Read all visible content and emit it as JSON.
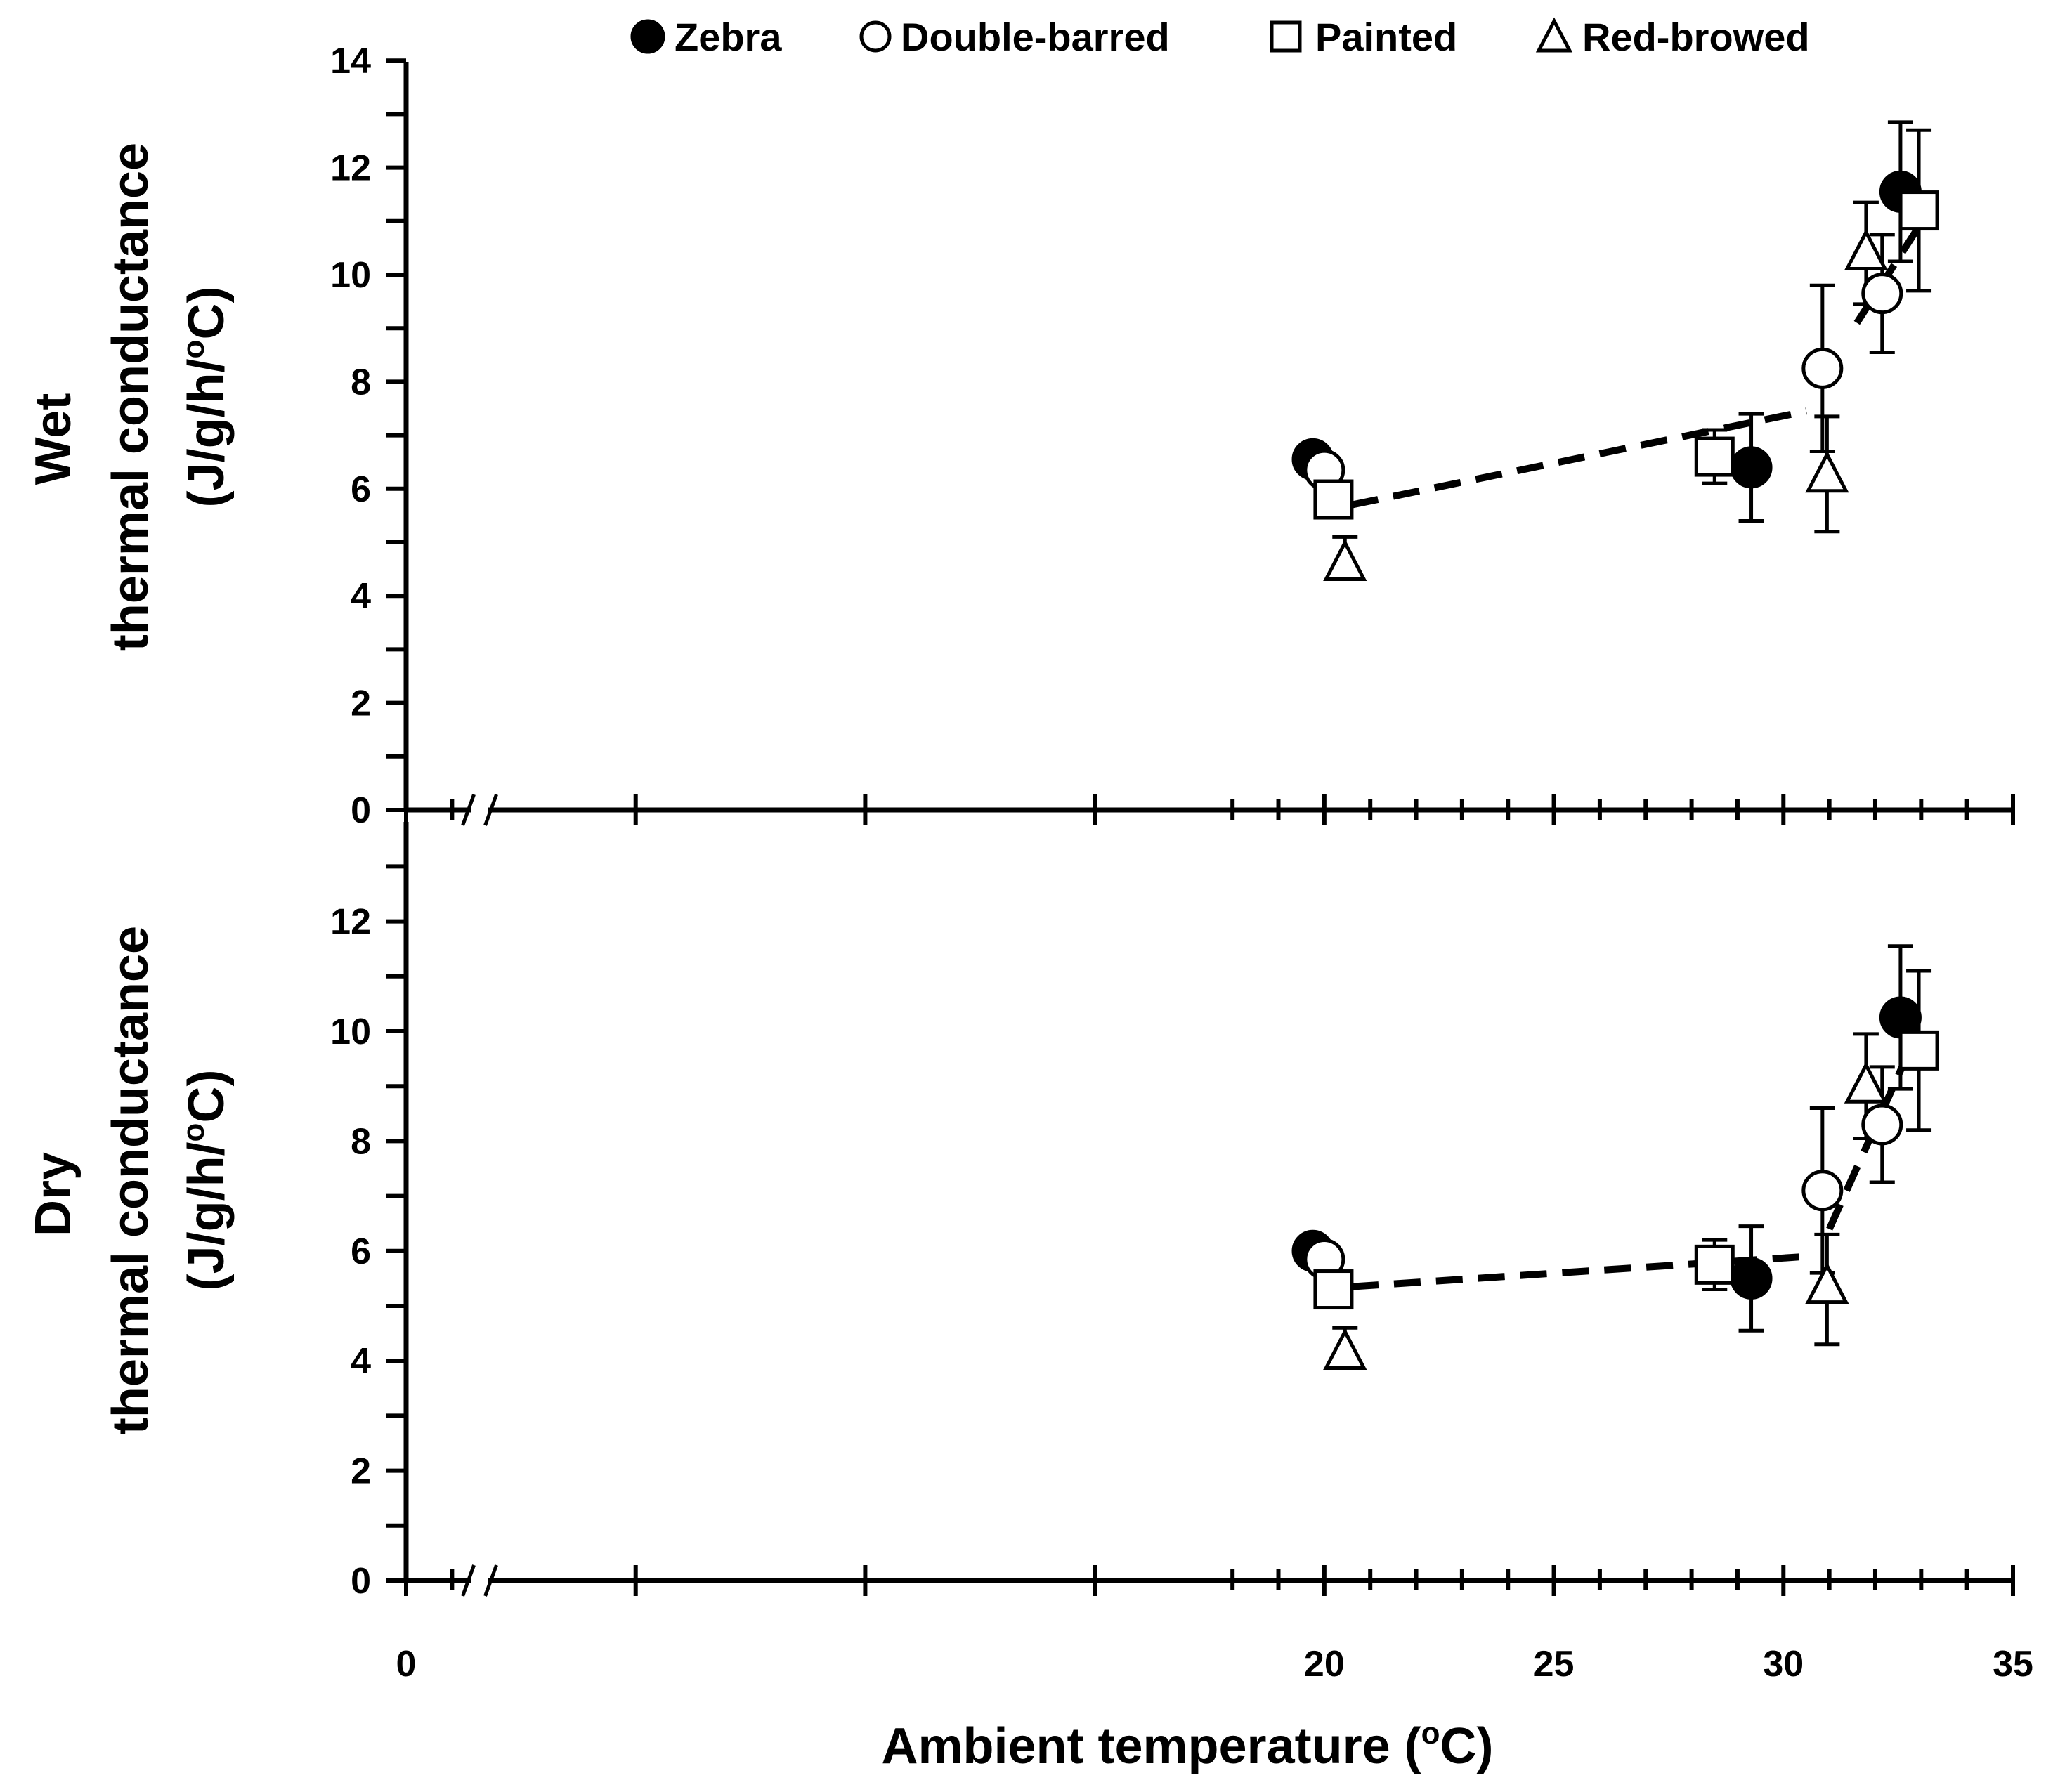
{
  "chart_data": [
    {
      "panel": "top",
      "type": "scatter",
      "ylabel_line1": "Wet",
      "ylabel_line2": "thermal conductance",
      "ylabel_line3": "(J/g/h/",
      "ylabel_sup": "o",
      "ylabel_unit": "C)",
      "ylim": [
        0,
        14
      ],
      "yticks": [
        "0",
        "2",
        "4",
        "6",
        "8",
        "10",
        "12",
        "14"
      ],
      "series": [
        {
          "name": "Zebra",
          "marker": "filled-circle",
          "points": [
            {
              "x": 19.75,
              "y": 6.55
            },
            {
              "x": 29.3,
              "y": 6.4,
              "err_up": 1.0,
              "err_down": 1.0
            },
            {
              "x": 32.55,
              "y": 11.55,
              "err_up": 1.3,
              "err_down": 1.3
            }
          ]
        },
        {
          "name": "Double-barred",
          "marker": "open-circle",
          "points": [
            {
              "x": 20.0,
              "y": 6.35
            },
            {
              "x": 30.85,
              "y": 8.25,
              "err_up": 1.55,
              "err_down": 1.55
            },
            {
              "x": 32.15,
              "y": 9.65,
              "err_up": 1.1,
              "err_down": 1.1
            }
          ]
        },
        {
          "name": "Painted",
          "marker": "open-square",
          "points": [
            {
              "x": 20.2,
              "y": 5.8
            },
            {
              "x": 28.5,
              "y": 6.6,
              "err_up": 0.5,
              "err_down": 0.5
            },
            {
              "x": 32.95,
              "y": 11.2,
              "err_up": 1.5,
              "err_down": 1.5
            }
          ]
        },
        {
          "name": "Red-browed",
          "marker": "open-triangle",
          "points": [
            {
              "x": 20.45,
              "y": 4.6,
              "err_up": 0.5,
              "err_down": 0.0
            },
            {
              "x": 30.95,
              "y": 6.25,
              "err_up": 1.1,
              "err_down": 1.05
            },
            {
              "x": 31.8,
              "y": 10.4,
              "err_up": 0.95,
              "err_down": 0.95
            }
          ]
        }
      ],
      "fit_lines": [
        {
          "x": [
            20.6,
            30.5
          ],
          "y": [
            5.7,
            7.45
          ]
        },
        {
          "x": [
            31.6,
            32.95
          ],
          "y": [
            9.1,
            10.9
          ]
        }
      ]
    },
    {
      "panel": "bottom",
      "type": "scatter",
      "ylabel_line1": "Dry",
      "ylabel_line2": "thermal conductance",
      "ylabel_line3": "(J/g/h/",
      "ylabel_sup": "o",
      "ylabel_unit": "C)",
      "ylim": [
        0,
        14
      ],
      "yticks": [
        "0",
        "2",
        "4",
        "6",
        "8",
        "10",
        "12"
      ],
      "series": [
        {
          "name": "Zebra",
          "marker": "filled-circle",
          "points": [
            {
              "x": 19.75,
              "y": 6.0
            },
            {
              "x": 29.3,
              "y": 5.5,
              "err_up": 0.95,
              "err_down": 0.95
            },
            {
              "x": 32.55,
              "y": 10.25,
              "err_up": 1.3,
              "err_down": 1.3
            }
          ]
        },
        {
          "name": "Double-barred",
          "marker": "open-circle",
          "points": [
            {
              "x": 20.0,
              "y": 5.85
            },
            {
              "x": 30.85,
              "y": 7.1,
              "err_up": 1.5,
              "err_down": 1.5
            },
            {
              "x": 32.15,
              "y": 8.3,
              "err_up": 1.05,
              "err_down": 1.05
            }
          ]
        },
        {
          "name": "Painted",
          "marker": "open-square",
          "points": [
            {
              "x": 20.2,
              "y": 5.3
            },
            {
              "x": 28.5,
              "y": 5.75,
              "err_up": 0.45,
              "err_down": 0.45
            },
            {
              "x": 32.95,
              "y": 9.65,
              "err_up": 1.45,
              "err_down": 1.45
            }
          ]
        },
        {
          "name": "Red-browed",
          "marker": "open-triangle",
          "points": [
            {
              "x": 20.45,
              "y": 4.15,
              "err_up": 0.45,
              "err_down": 0.0
            },
            {
              "x": 30.95,
              "y": 5.35,
              "err_up": 0.95,
              "err_down": 1.05
            },
            {
              "x": 31.8,
              "y": 9.0,
              "err_up": 0.95,
              "err_down": 0.95
            }
          ]
        }
      ],
      "fit_lines": [
        {
          "x": [
            20.6,
            30.5
          ],
          "y": [
            5.35,
            5.9
          ]
        },
        {
          "x": [
            31.0,
            32.8
          ],
          "y": [
            6.4,
            9.75
          ]
        }
      ]
    }
  ],
  "xaxis": {
    "label": "Ambient temperature (",
    "label_sup": "o",
    "label_unit": "C)",
    "xlim": [
      0,
      35
    ],
    "ticks": [
      {
        "value": 0,
        "label": "0"
      },
      {
        "value": 20,
        "label": "20"
      },
      {
        "value": 25,
        "label": "25"
      },
      {
        "value": 30,
        "label": "30"
      },
      {
        "value": 35,
        "label": "35"
      }
    ],
    "axis_break": true
  },
  "legend": {
    "placement": "top",
    "entries": [
      {
        "name": "Zebra",
        "marker": "filled-circle"
      },
      {
        "name": "Double-barred",
        "marker": "open-circle"
      },
      {
        "name": "Painted",
        "marker": "open-square"
      },
      {
        "name": "Red-browed",
        "marker": "open-triangle"
      }
    ]
  },
  "colors": {
    "ink": "#000000",
    "background": "#ffffff"
  }
}
